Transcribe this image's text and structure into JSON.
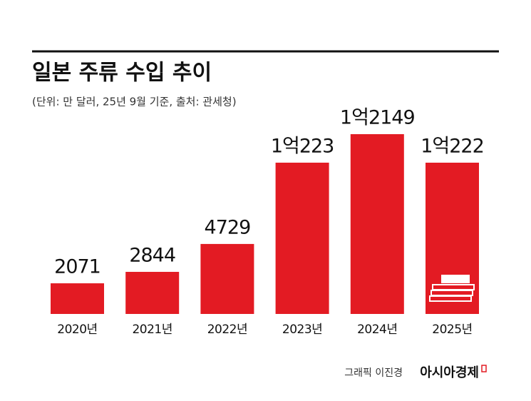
{
  "chart_data": {
    "type": "bar",
    "title": "일본 주류 수입 추이",
    "subtitle": "(단위: 만 달러, 25년 9월 기준, 출처: 관세청)",
    "categories": [
      "2020년",
      "2021년",
      "2022년",
      "2023년",
      "2024년",
      "2025년"
    ],
    "values": [
      2071,
      2844,
      4729,
      10223,
      12149,
      10222
    ],
    "value_labels": [
      "2071",
      "2844",
      "4729",
      "1억223",
      "1억2149",
      "1억222"
    ],
    "color": "#e31b23",
    "credit": "그래픽 이진경",
    "brand": "아시아경제"
  }
}
